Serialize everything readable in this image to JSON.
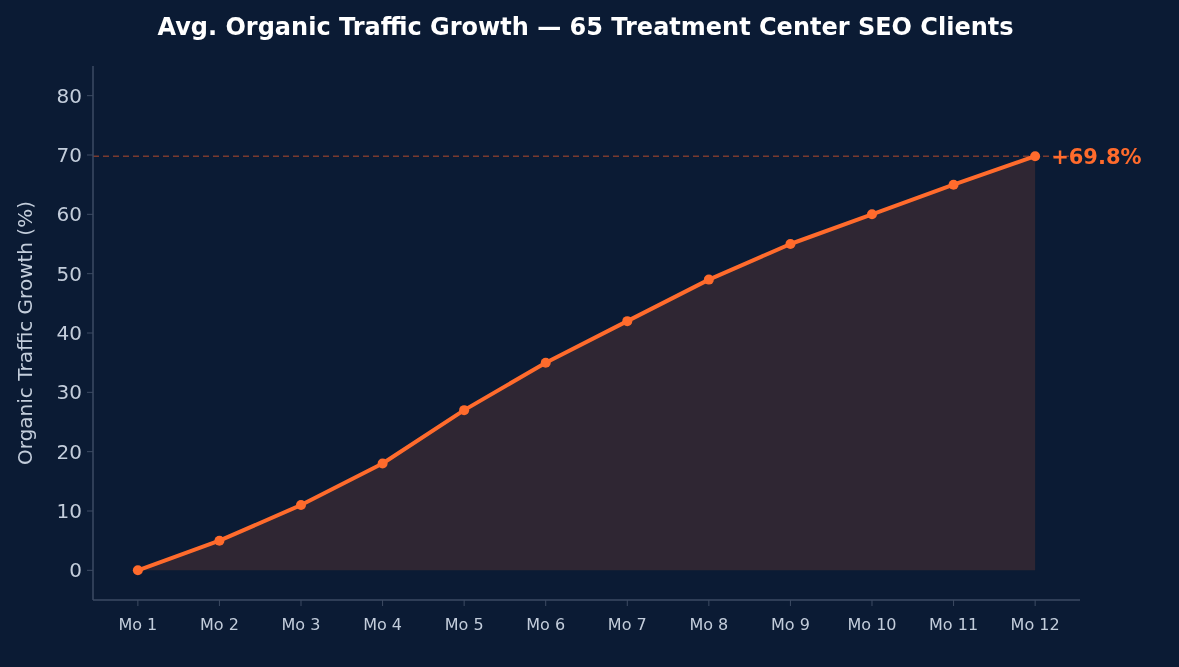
{
  "chart_data": {
    "type": "area",
    "title": "Avg. Organic Traffic Growth — 65 Treatment Center SEO Clients",
    "ylabel": "Organic Traffic Growth (%)",
    "categories": [
      "Mo 1",
      "Mo 2",
      "Mo 3",
      "Mo 4",
      "Mo 5",
      "Mo 6",
      "Mo 7",
      "Mo 8",
      "Mo 9",
      "Mo 10",
      "Mo 11",
      "Mo 12"
    ],
    "series": [
      {
        "color": "#ff6b2c",
        "values": [
          0,
          5,
          11,
          18,
          27,
          35,
          42,
          49,
          55,
          60,
          65,
          69.8
        ]
      }
    ],
    "ylim": [
      -5,
      85
    ],
    "yticks": [
      0,
      10,
      20,
      30,
      40,
      50,
      60,
      70,
      80
    ],
    "marker": "circle",
    "line_style": "solid",
    "grid": false,
    "ref_lines": [
      {
        "axis": "y",
        "value": 69.8,
        "color": "#7a3a2e",
        "line_style": "dashed"
      }
    ],
    "annotations": [
      {
        "text": "+69.8%",
        "x": "Mo 12",
        "y": 69.8
      }
    ]
  }
}
